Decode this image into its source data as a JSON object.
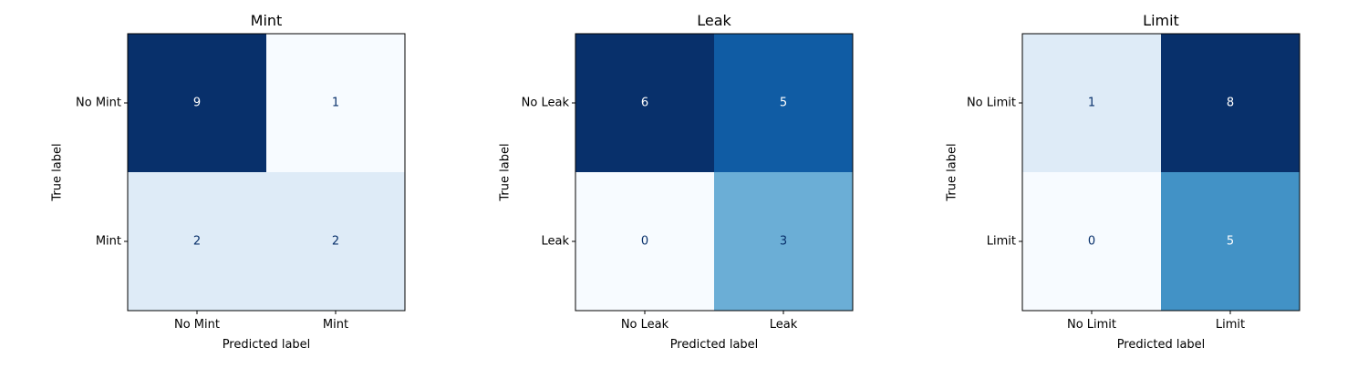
{
  "chart_data": [
    {
      "type": "heatmap",
      "title": "Mint",
      "xlabel": "Predicted label",
      "ylabel": "True label",
      "x_tick_labels": [
        "No Mint",
        "Mint"
      ],
      "y_tick_labels": [
        "No Mint",
        "Mint"
      ],
      "values": [
        [
          9,
          1
        ],
        [
          2,
          2
        ]
      ],
      "colormap": "Blues",
      "light_text_color": "#ffffff",
      "dark_text_color": "#08306b"
    },
    {
      "type": "heatmap",
      "title": "Leak",
      "xlabel": "Predicted label",
      "ylabel": "True label",
      "x_tick_labels": [
        "No Leak",
        "Leak"
      ],
      "y_tick_labels": [
        "No Leak",
        "Leak"
      ],
      "values": [
        [
          6,
          5
        ],
        [
          0,
          3
        ]
      ],
      "colormap": "Blues",
      "light_text_color": "#ffffff",
      "dark_text_color": "#08306b"
    },
    {
      "type": "heatmap",
      "title": "Limit",
      "xlabel": "Predicted label",
      "ylabel": "True label",
      "x_tick_labels": [
        "No Limit",
        "Limit"
      ],
      "y_tick_labels": [
        "No Limit",
        "Limit"
      ],
      "values": [
        [
          1,
          8
        ],
        [
          0,
          5
        ]
      ],
      "colormap": "Blues",
      "light_text_color": "#ffffff",
      "dark_text_color": "#08306b"
    }
  ]
}
